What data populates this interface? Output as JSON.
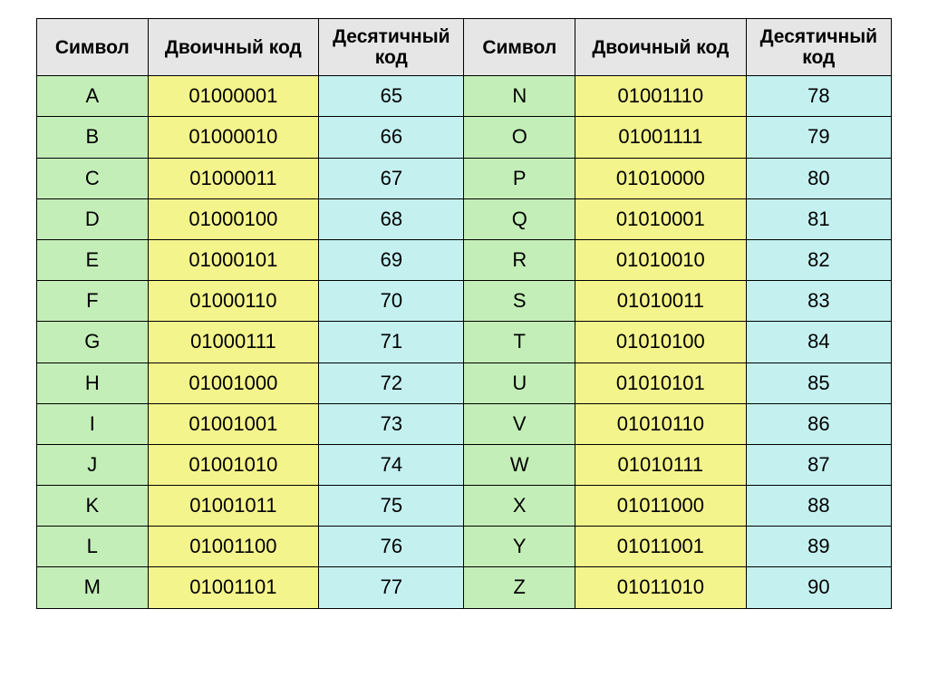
{
  "table": {
    "headers": {
      "symbol": "Символ",
      "binary": "Двоичный код",
      "decimal": "Десятичный код"
    },
    "colors": {
      "header_bg": "#e6e6e6",
      "symbol_bg": "#c4eeb8",
      "binary_bg": "#f4f48c",
      "decimal_bg": "#c4f0f0",
      "border": "#000000",
      "text": "#000000"
    },
    "font": {
      "family": "Arial",
      "header_size_pt": 16,
      "cell_size_pt": 17,
      "header_weight": "bold",
      "cell_weight": "normal"
    },
    "column_widths_pct": [
      13,
      20,
      17,
      13,
      20,
      17
    ],
    "rows": [
      {
        "l_sym": "A",
        "l_bin": "01000001",
        "l_dec": "65",
        "r_sym": "N",
        "r_bin": "01001110",
        "r_dec": "78"
      },
      {
        "l_sym": "B",
        "l_bin": "01000010",
        "l_dec": "66",
        "r_sym": "O",
        "r_bin": "01001111",
        "r_dec": "79"
      },
      {
        "l_sym": "C",
        "l_bin": "01000011",
        "l_dec": "67",
        "r_sym": "P",
        "r_bin": "01010000",
        "r_dec": "80"
      },
      {
        "l_sym": "D",
        "l_bin": "01000100",
        "l_dec": "68",
        "r_sym": "Q",
        "r_bin": "01010001",
        "r_dec": "81"
      },
      {
        "l_sym": "E",
        "l_bin": "01000101",
        "l_dec": "69",
        "r_sym": "R",
        "r_bin": "01010010",
        "r_dec": "82"
      },
      {
        "l_sym": "F",
        "l_bin": "01000110",
        "l_dec": "70",
        "r_sym": "S",
        "r_bin": "01010011",
        "r_dec": "83"
      },
      {
        "l_sym": "G",
        "l_bin": "01000111",
        "l_dec": "71",
        "r_sym": "T",
        "r_bin": "01010100",
        "r_dec": "84"
      },
      {
        "l_sym": "H",
        "l_bin": "01001000",
        "l_dec": "72",
        "r_sym": "U",
        "r_bin": "01010101",
        "r_dec": "85"
      },
      {
        "l_sym": "I",
        "l_bin": "01001001",
        "l_dec": "73",
        "r_sym": "V",
        "r_bin": "01010110",
        "r_dec": "86"
      },
      {
        "l_sym": "J",
        "l_bin": "01001010",
        "l_dec": "74",
        "r_sym": "W",
        "r_bin": "01010111",
        "r_dec": "87"
      },
      {
        "l_sym": "K",
        "l_bin": "01001011",
        "l_dec": "75",
        "r_sym": "X",
        "r_bin": "01011000",
        "r_dec": "88"
      },
      {
        "l_sym": "L",
        "l_bin": "01001100",
        "l_dec": "76",
        "r_sym": "Y",
        "r_bin": "01011001",
        "r_dec": "89"
      },
      {
        "l_sym": "M",
        "l_bin": "01001101",
        "l_dec": "77",
        "r_sym": "Z",
        "r_bin": "01011010",
        "r_dec": "90"
      }
    ]
  }
}
